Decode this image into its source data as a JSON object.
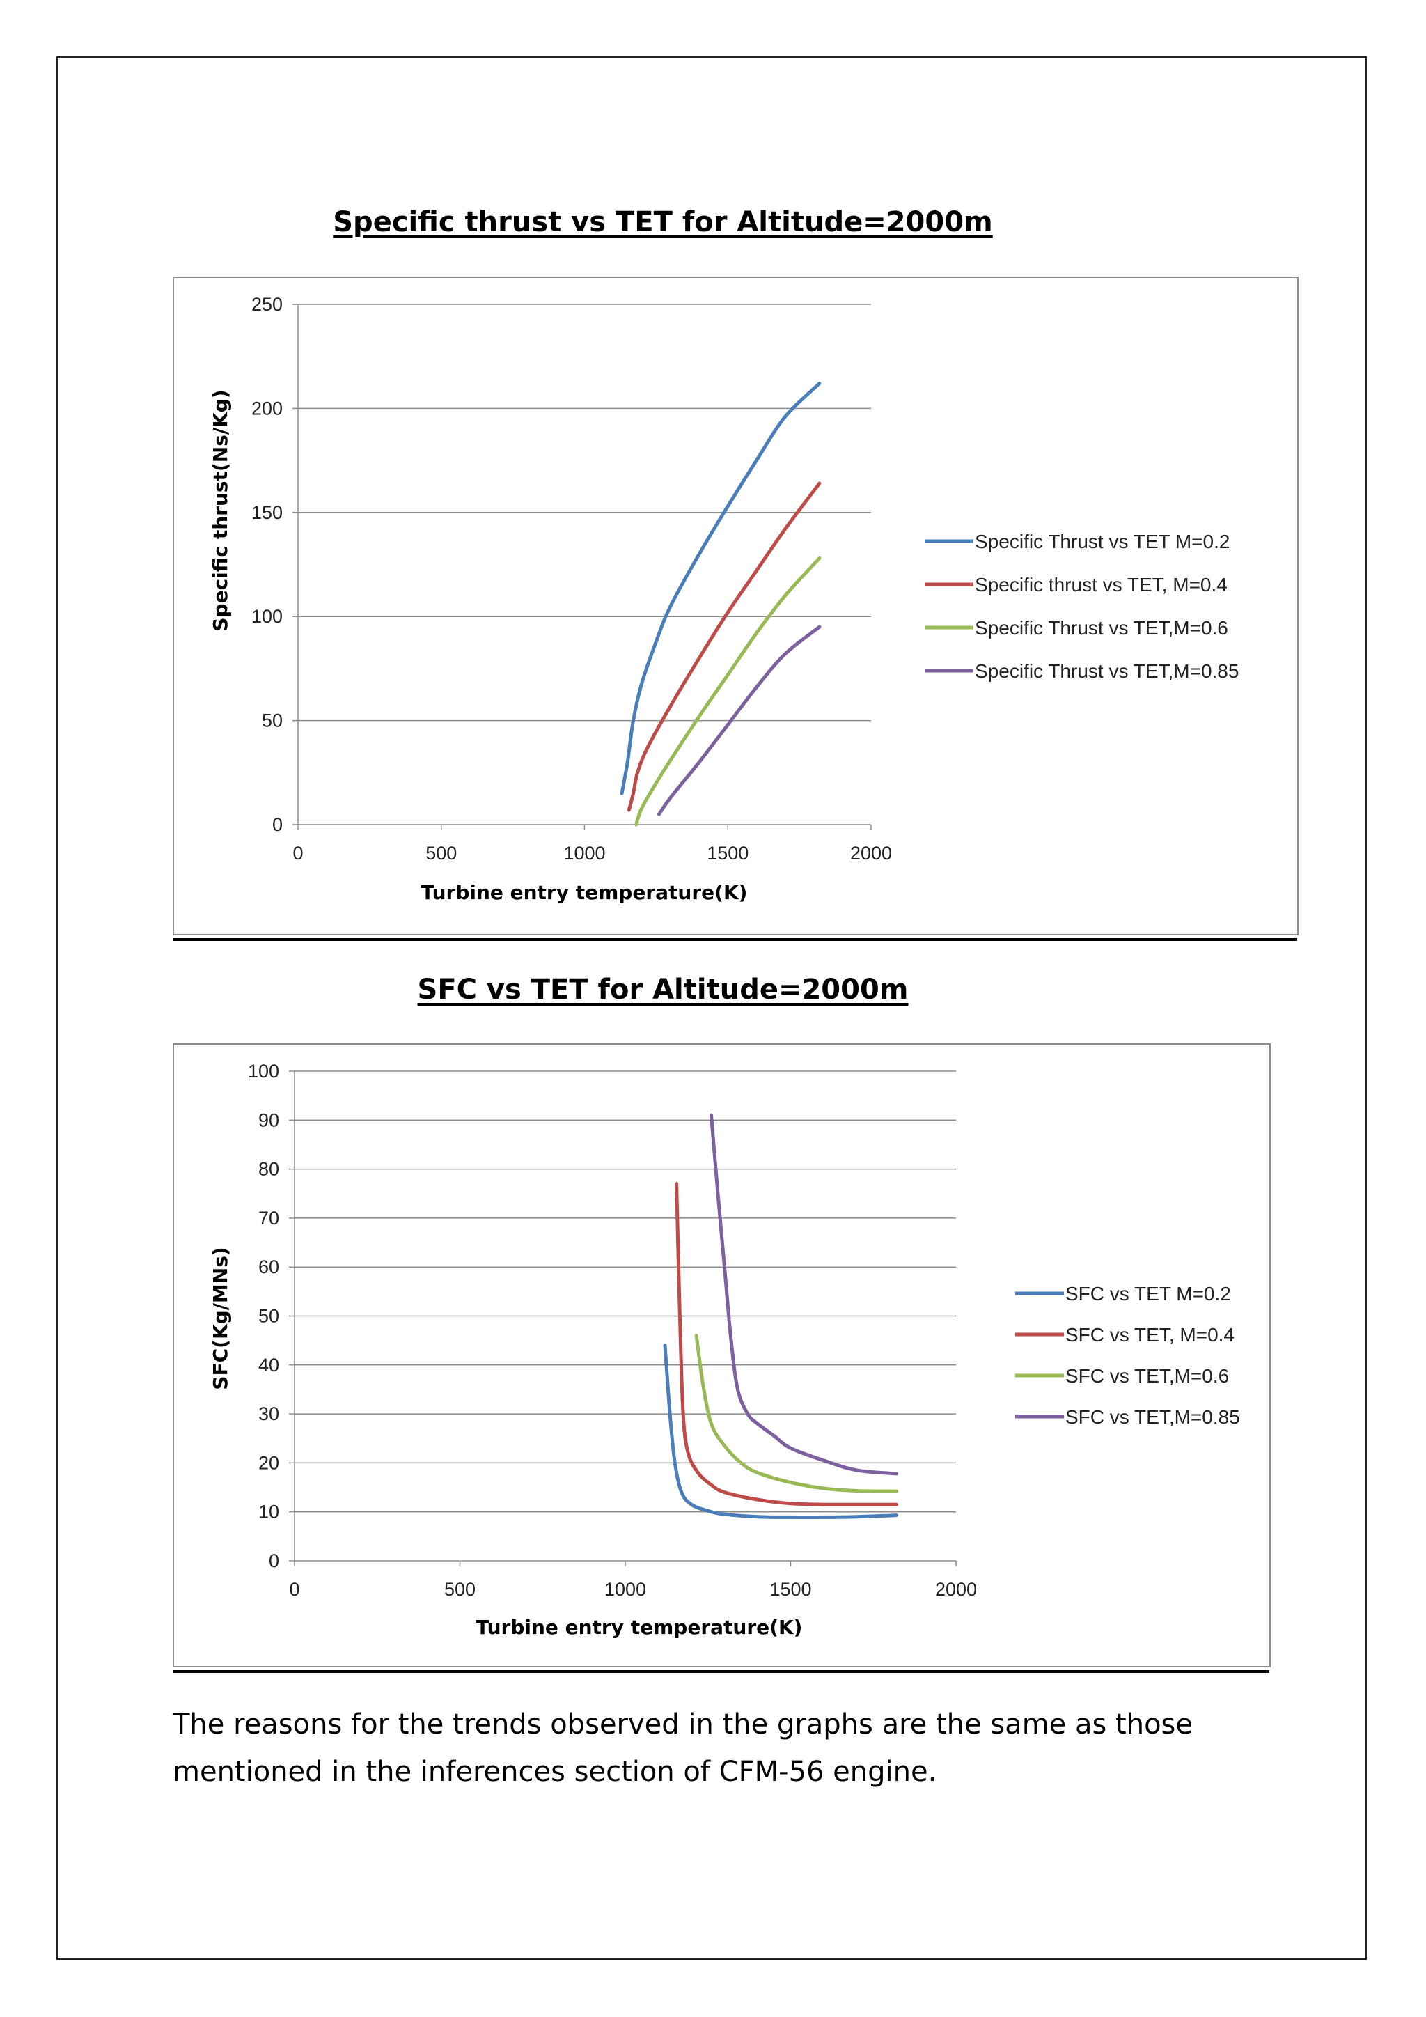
{
  "chart_data": [
    {
      "id": "chart1",
      "type": "line",
      "title": "Specific thrust vs TET for Altitude=2000m",
      "xlabel": "Turbine entry temperature(K)",
      "ylabel": "Specific thrust(Ns/Kg)",
      "xlim": [
        0,
        2000
      ],
      "ylim": [
        0,
        250
      ],
      "xticks": [
        0,
        500,
        1000,
        1500,
        2000
      ],
      "yticks": [
        0,
        50,
        100,
        150,
        200,
        250
      ],
      "grid": "horizontal",
      "legend_position": "right",
      "series": [
        {
          "name": "Specific Thrust vs TET M=0.2",
          "color": "#4a7ebb",
          "points": [
            [
              1130,
              15
            ],
            [
              1150,
              30
            ],
            [
              1170,
              50
            ],
            [
              1200,
              68
            ],
            [
              1250,
              88
            ],
            [
              1300,
              105
            ],
            [
              1400,
              130
            ],
            [
              1500,
              153
            ],
            [
              1600,
              175
            ],
            [
              1700,
              196
            ],
            [
              1820,
              212
            ]
          ]
        },
        {
          "name": "Specific thrust vs TET, M=0.4",
          "color": "#be4b48",
          "points": [
            [
              1155,
              7
            ],
            [
              1170,
              15
            ],
            [
              1185,
              25
            ],
            [
              1220,
              37
            ],
            [
              1300,
              57
            ],
            [
              1400,
              80
            ],
            [
              1500,
              102
            ],
            [
              1600,
              122
            ],
            [
              1700,
              142
            ],
            [
              1820,
              164
            ]
          ]
        },
        {
          "name": "Specific Thrust vs TET,M=0.6",
          "color": "#98b954",
          "points": [
            [
              1180,
              0
            ],
            [
              1200,
              8
            ],
            [
              1250,
              20
            ],
            [
              1300,
              31
            ],
            [
              1400,
              52
            ],
            [
              1500,
              72
            ],
            [
              1600,
              92
            ],
            [
              1700,
              110
            ],
            [
              1820,
              128
            ]
          ]
        },
        {
          "name": "Specific Thrust vs TET,M=0.85",
          "color": "#7d60a0",
          "points": [
            [
              1260,
              5
            ],
            [
              1300,
              13
            ],
            [
              1400,
              30
            ],
            [
              1500,
              48
            ],
            [
              1600,
              66
            ],
            [
              1700,
              82
            ],
            [
              1820,
              95
            ]
          ]
        }
      ]
    },
    {
      "id": "chart2",
      "type": "line",
      "title": "SFC vs TET for Altitude=2000m",
      "xlabel": "Turbine entry temperature(K)",
      "ylabel": "SFC(Kg/MNs)",
      "xlim": [
        0,
        2000
      ],
      "ylim": [
        0,
        100
      ],
      "xticks": [
        0,
        500,
        1000,
        1500,
        2000
      ],
      "yticks": [
        0,
        10,
        20,
        30,
        40,
        50,
        60,
        70,
        80,
        90,
        100
      ],
      "grid": "horizontal",
      "legend_position": "right",
      "series": [
        {
          "name": "SFC vs TET M=0.2",
          "color": "#4a7ebb",
          "points": [
            [
              1120,
              44
            ],
            [
              1135,
              30
            ],
            [
              1150,
              20
            ],
            [
              1170,
              14
            ],
            [
              1200,
              11.5
            ],
            [
              1250,
              10.2
            ],
            [
              1300,
              9.5
            ],
            [
              1400,
              9.0
            ],
            [
              1500,
              8.9
            ],
            [
              1600,
              8.9
            ],
            [
              1700,
              9.0
            ],
            [
              1820,
              9.3
            ]
          ]
        },
        {
          "name": "SFC vs TET, M=0.4",
          "color": "#be4b48",
          "points": [
            [
              1155,
              77
            ],
            [
              1165,
              50
            ],
            [
              1175,
              30
            ],
            [
              1190,
              22
            ],
            [
              1220,
              18
            ],
            [
              1260,
              15.5
            ],
            [
              1300,
              14
            ],
            [
              1400,
              12.5
            ],
            [
              1500,
              11.7
            ],
            [
              1600,
              11.5
            ],
            [
              1700,
              11.5
            ],
            [
              1820,
              11.5
            ]
          ]
        },
        {
          "name": "SFC vs TET,M=0.6",
          "color": "#98b954",
          "points": [
            [
              1215,
              46
            ],
            [
              1235,
              36
            ],
            [
              1260,
              28
            ],
            [
              1300,
              23.5
            ],
            [
              1350,
              20
            ],
            [
              1400,
              18
            ],
            [
              1500,
              16
            ],
            [
              1600,
              14.8
            ],
            [
              1700,
              14.3
            ],
            [
              1820,
              14.2
            ]
          ]
        },
        {
          "name": "SFC vs TET,M=0.85",
          "color": "#7d60a0",
          "points": [
            [
              1260,
              91
            ],
            [
              1280,
              75
            ],
            [
              1300,
              60
            ],
            [
              1320,
              45
            ],
            [
              1340,
              35
            ],
            [
              1370,
              30
            ],
            [
              1400,
              28
            ],
            [
              1450,
              25.5
            ],
            [
              1500,
              23
            ],
            [
              1600,
              20.5
            ],
            [
              1700,
              18.5
            ],
            [
              1820,
              17.8
            ]
          ]
        }
      ]
    }
  ],
  "paragraph": "The reasons for the trends observed in the graphs are the same as those mentioned in the inferences section of CFM-56 engine."
}
